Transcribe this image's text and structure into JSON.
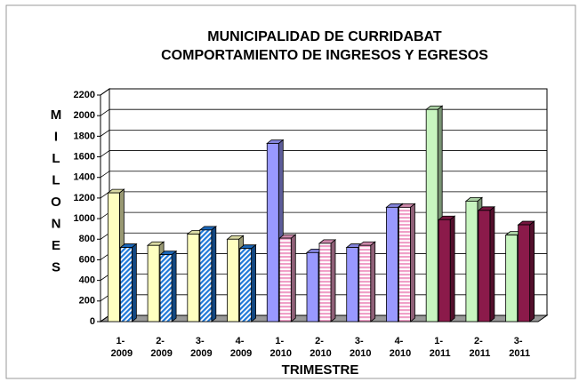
{
  "chart_data": {
    "type": "bar3d",
    "title": "MUNICIPALIDAD DE CURRIDABAT",
    "subtitle": "COMPORTAMIENTO DE INGRESOS Y EGRESOS",
    "y_label": "MILLONES",
    "x_label": "TRIMESTRE",
    "categories": [
      "1- 2009",
      "2- 2009",
      "3- 2009",
      "4- 2009",
      "1- 2010",
      "2- 2010",
      "3- 2010",
      "4- 2010",
      "1- 2011",
      "2- 2011",
      "3- 2011"
    ],
    "series": [
      {
        "values": [
          1250,
          740,
          850,
          800,
          1730,
          670,
          720,
          1110,
          2060,
          1170,
          840
        ],
        "colors": [
          "#ffffc0",
          "#ffffc0",
          "#ffffc0",
          "#ffffc0",
          "#9999ff",
          "#9999ff",
          "#9999ff",
          "#9999ff",
          "#c8f5c0",
          "#c8f5c0",
          "#c8f5c0"
        ],
        "hatch": [
          null,
          null,
          null,
          null,
          null,
          null,
          null,
          null,
          null,
          null,
          null
        ]
      },
      {
        "values": [
          720,
          650,
          890,
          710,
          810,
          760,
          740,
          1110,
          990,
          1080,
          940
        ],
        "colors": [
          "#1f78d8",
          "#1f78d8",
          "#1f78d8",
          "#1f78d8",
          "#f0a0c8",
          "#f0a0c8",
          "#f0a0c8",
          "#f0a0c8",
          "#8b1a4a",
          "#8b1a4a",
          "#8b1a4a"
        ],
        "hatch": [
          "diagonal",
          "diagonal",
          "diagonal",
          "diagonal",
          "horizontal",
          "horizontal",
          "horizontal",
          "horizontal",
          null,
          null,
          null
        ]
      }
    ],
    "ylim": [
      0,
      2200
    ],
    "yticks": [
      0,
      200,
      400,
      600,
      800,
      1000,
      1200,
      1400,
      1600,
      1800,
      2000,
      2200
    ],
    "grid": true
  }
}
